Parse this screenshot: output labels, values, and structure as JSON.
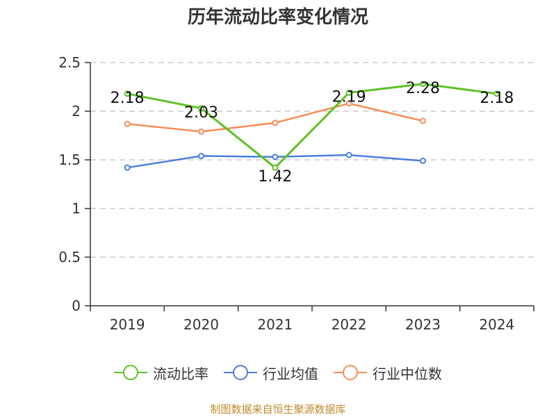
{
  "chart_data": {
    "type": "line",
    "title": "历年流动比率变化情况",
    "categories": [
      "2019",
      "2020",
      "2021",
      "2022",
      "2023",
      "2024"
    ],
    "ylim": [
      0,
      2.5
    ],
    "yticks": [
      "0",
      "0.5",
      "1",
      "1.5",
      "2",
      "2.5"
    ],
    "ytick_values": [
      0,
      0.5,
      1,
      1.5,
      2,
      2.5
    ],
    "grid": true,
    "legend_position": "bottom",
    "series": [
      {
        "name": "流动比率",
        "color": "#5cc225",
        "values": [
          2.18,
          2.03,
          1.42,
          2.19,
          2.28,
          2.18
        ],
        "labels": [
          "2.18",
          "2.03",
          "1.42",
          "2.19",
          "2.28",
          "2.18"
        ],
        "width": 3
      },
      {
        "name": "行业均值",
        "color": "#4a7fdc",
        "values": [
          1.42,
          1.54,
          1.53,
          1.55,
          1.49,
          null
        ],
        "width": 2.5
      },
      {
        "name": "行业中位数",
        "color": "#f58e56",
        "values": [
          1.87,
          1.79,
          1.88,
          2.08,
          1.9,
          null
        ],
        "width": 2.5
      }
    ]
  },
  "source": "制图数据来自恒生聚源数据库"
}
